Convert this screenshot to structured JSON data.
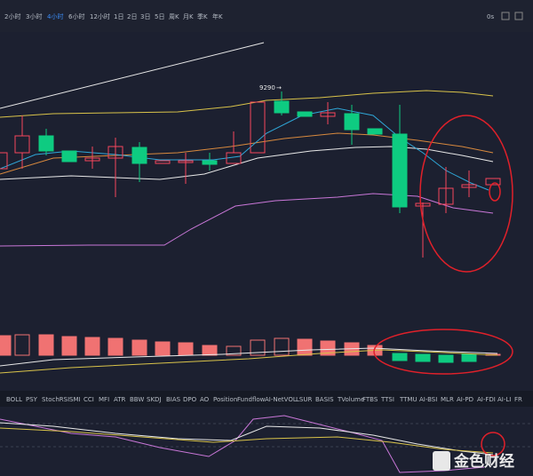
{
  "toolbar": {
    "intervals": [
      "2小时",
      "3小时",
      "4小时",
      "6小时",
      "12小时",
      "1日",
      "2日",
      "3日",
      "5日",
      "周K",
      "月K",
      "季K",
      "年K"
    ],
    "timer": "0s"
  },
  "chart": {
    "price_label": "9290"
  },
  "indicators": [
    "BOLL",
    "PSY",
    "StochRSI",
    "SMI",
    "CCI",
    "MFI",
    "ATR",
    "BBW",
    "SKDJ",
    "BIAS",
    "DPO",
    "AO",
    "Position",
    "Fundflow",
    "AI-NetVOL",
    "LSUR",
    "BASIS",
    "TVolume",
    "FTBS",
    "TTSI",
    "TTMU",
    "AI-BSI",
    "MLR",
    "AI-PD",
    "AI-FDI",
    "AI-LI",
    "FR"
  ],
  "watermark": "金色财经"
}
